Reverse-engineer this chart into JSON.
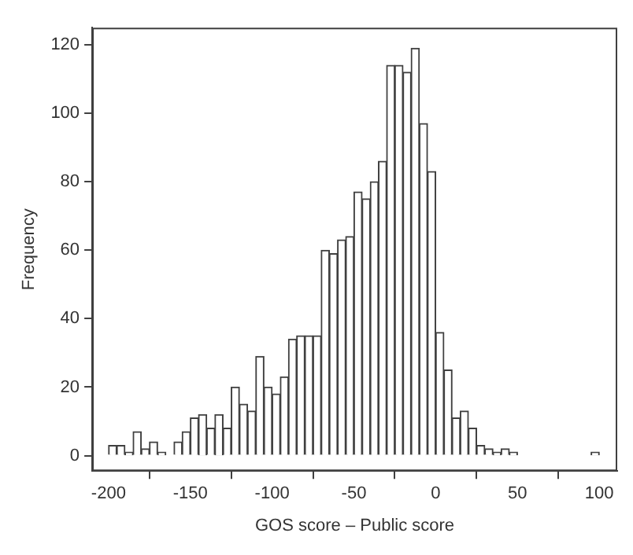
{
  "chart_data": {
    "type": "histogram",
    "xlabel": "GOS score – Public score",
    "ylabel": "Frequency",
    "bins": [
      -200,
      -195,
      -190,
      -185,
      -180,
      -175,
      -170,
      -165,
      -160,
      -155,
      -150,
      -145,
      -140,
      -135,
      -130,
      -125,
      -120,
      -115,
      -110,
      -105,
      -100,
      -95,
      -90,
      -85,
      -80,
      -75,
      -70,
      -65,
      -60,
      -55,
      -50,
      -45,
      -40,
      -35,
      -30,
      -25,
      -20,
      -15,
      -10,
      -5,
      0,
      5,
      10,
      15,
      20,
      25,
      30,
      35,
      40,
      45,
      50,
      55,
      60,
      65,
      70,
      75,
      80,
      85,
      90,
      95,
      100
    ],
    "values": [
      3,
      3,
      1,
      7,
      2,
      4,
      1,
      0,
      4,
      7,
      11,
      12,
      8,
      12,
      8,
      20,
      15,
      13,
      29,
      20,
      18,
      23,
      34,
      35,
      35,
      35,
      60,
      59,
      63,
      64,
      77,
      75,
      80,
      86,
      114,
      114,
      112,
      119,
      97,
      83,
      36,
      25,
      11,
      13,
      8,
      3,
      2,
      1,
      2,
      1,
      0,
      0,
      0,
      0,
      0,
      0,
      0,
      0,
      0,
      1
    ],
    "color": "#ffffff",
    "xlim": [
      -210,
      111
    ],
    "xticks": [
      -200,
      -150,
      -100,
      -50,
      0,
      50,
      100
    ],
    "ylim": [
      -4.5,
      125
    ],
    "yticks": [
      0,
      20,
      40,
      60,
      80,
      100,
      120
    ],
    "grid": false,
    "legend": false
  }
}
